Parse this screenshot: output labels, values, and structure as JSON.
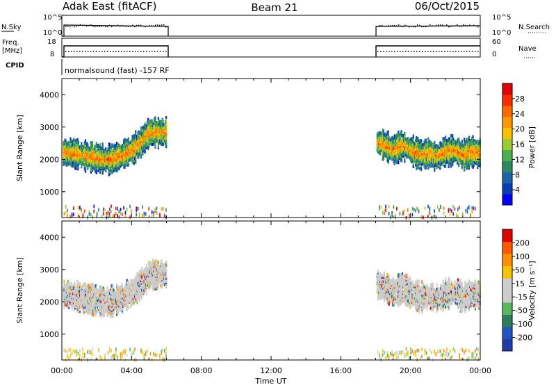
{
  "header": {
    "radar": "Adak East (fitACF)",
    "beam": "Beam 21",
    "date": "06/Oct/2015"
  },
  "status": {
    "nsky_label": "N.Sky",
    "nsearch_label": "N.Search",
    "freq_label": "Freq.",
    "freq_unit": "[MHz]",
    "nave_label": "Nave",
    "cpid_label": "CPID",
    "nsky_ticks": [
      "10^5",
      "10^0"
    ],
    "nsearch_ticks": [
      "10^5",
      "10^0"
    ],
    "freq_ticks": [
      "18",
      "8"
    ],
    "nave_ticks": [
      "60",
      "0"
    ],
    "cpid_text": "normalsound (fast) -157 RF"
  },
  "xaxis": {
    "label": "Time UT",
    "ticks": [
      "00:00",
      "04:00",
      "08:00",
      "12:00",
      "16:00",
      "20:00",
      "00:00"
    ]
  },
  "power_panel": {
    "ylabel": "Slant Range [km]",
    "yticks": [
      "4000",
      "3000",
      "2000",
      "1000"
    ],
    "colorbar_label": "Power [dB]",
    "colorbar_ticks": [
      "28",
      "24",
      "20",
      "16",
      "12",
      "8",
      "4"
    ],
    "colors": [
      "#0000ff",
      "#0a3fb3",
      "#1f64a8",
      "#2e8a63",
      "#4caf50",
      "#9acd32",
      "#ffc000",
      "#ff9800",
      "#ff6a00",
      "#ff2a00",
      "#e00000"
    ]
  },
  "velocity_panel": {
    "ylabel": "Slant Range [km]",
    "yticks": [
      "4000",
      "3000",
      "2000",
      "1000"
    ],
    "colorbar_label": "Velocity [m s⁻¹]",
    "colorbar_ticks": [
      "200",
      "100",
      "50",
      "15",
      "-15",
      "-50",
      "-100",
      "-200"
    ],
    "colors": [
      "#1f3ca8",
      "#2255c0",
      "#2e7d5a",
      "#5cb85c",
      "#cccccc",
      "#cccccc",
      "#f5c400",
      "#ff9000",
      "#ff5a00",
      "#e00000"
    ]
  },
  "chart_data": {
    "type": "heatmap",
    "x_unit": "hours UT",
    "xlim": [
      0,
      24
    ],
    "ylim": [
      200,
      4500
    ],
    "observation_periods": [
      [
        0,
        6
      ],
      [
        18,
        24
      ]
    ],
    "ionospheric_band_center_km": [
      [
        0.0,
        2250
      ],
      [
        0.5,
        2200
      ],
      [
        1.0,
        2150
      ],
      [
        1.5,
        2100
      ],
      [
        2.0,
        2050
      ],
      [
        2.5,
        2000
      ],
      [
        3.0,
        2050
      ],
      [
        3.5,
        2150
      ],
      [
        4.0,
        2300
      ],
      [
        4.5,
        2550
      ],
      [
        5.0,
        2850
      ],
      [
        18.0,
        2550
      ],
      [
        18.5,
        2450
      ],
      [
        19.0,
        2300
      ],
      [
        19.5,
        2450
      ],
      [
        20.0,
        2300
      ],
      [
        20.5,
        2150
      ],
      [
        21.0,
        2200
      ],
      [
        21.5,
        2100
      ],
      [
        22.0,
        2250
      ],
      [
        22.5,
        2300
      ],
      [
        23.0,
        2150
      ],
      [
        23.5,
        2250
      ],
      [
        24.0,
        2200
      ]
    ],
    "ground_clutter_km": [
      250,
      600
    ],
    "power_db_range": [
      0,
      32
    ],
    "velocity_range": [
      -250,
      250
    ]
  }
}
